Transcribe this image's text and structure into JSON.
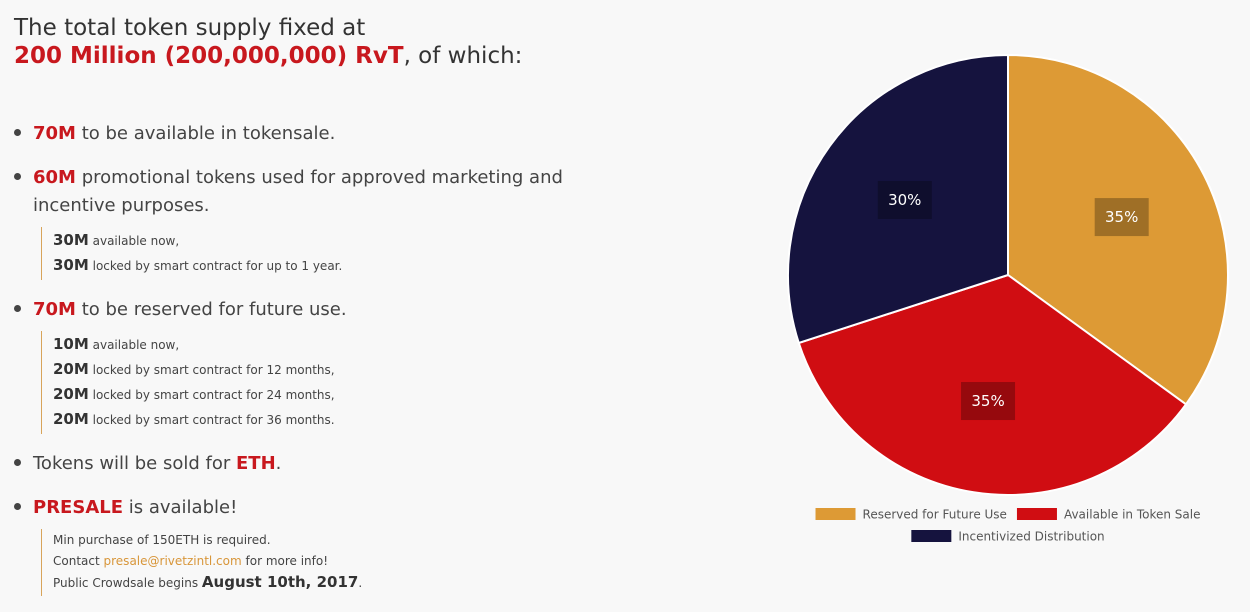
{
  "headline": {
    "line1": "The total token supply fixed at",
    "highlight": "200 Million (200,000,000) RvT",
    "rest": ", of which:"
  },
  "bullets": [
    {
      "amount": "70M",
      "text": " to be available in tokensale.",
      "subs": []
    },
    {
      "amount": "60M",
      "text": " promotional tokens used for approved marketing and incentive purposes.",
      "subs": [
        {
          "amount": "30M",
          "text": " available now,"
        },
        {
          "amount": "30M",
          "text": " locked by smart contract for up to 1 year."
        }
      ]
    },
    {
      "amount": "70M",
      "text": " to be reserved for future use.",
      "subs": [
        {
          "amount": "10M",
          "text": " available now,"
        },
        {
          "amount": "20M",
          "text": " locked by smart contract for 12 months,"
        },
        {
          "amount": "20M",
          "text": " locked by smart contract for 24 months,"
        },
        {
          "amount": "20M",
          "text": " locked by smart contract for 36 months."
        }
      ]
    }
  ],
  "eth": {
    "prefix": "Tokens will be sold for ",
    "highlight": "ETH",
    "suffix": "."
  },
  "presale": {
    "highlight": "PRESALE",
    "text": " is available!",
    "min": "Min purchase of 150ETH is required.",
    "contact_prefix": "Contact ",
    "email": "presale@rivetzintl.com",
    "contact_suffix": " for more info!",
    "begins_prefix": "Public Crowdsale begins ",
    "date": "August 10th, 2017",
    "date_suffix": "."
  },
  "chart_data": {
    "type": "pie",
    "slices": [
      {
        "label": "Reserved for Future Use",
        "value": 35,
        "display": "35%",
        "color": "#dd9a35"
      },
      {
        "label": "Available in Token Sale",
        "value": 35,
        "display": "35%",
        "color": "#d00d12"
      },
      {
        "label": "Incentivized Distribution",
        "value": 30,
        "display": "30%",
        "color": "#15133e"
      }
    ],
    "legend_position": "bottom"
  }
}
